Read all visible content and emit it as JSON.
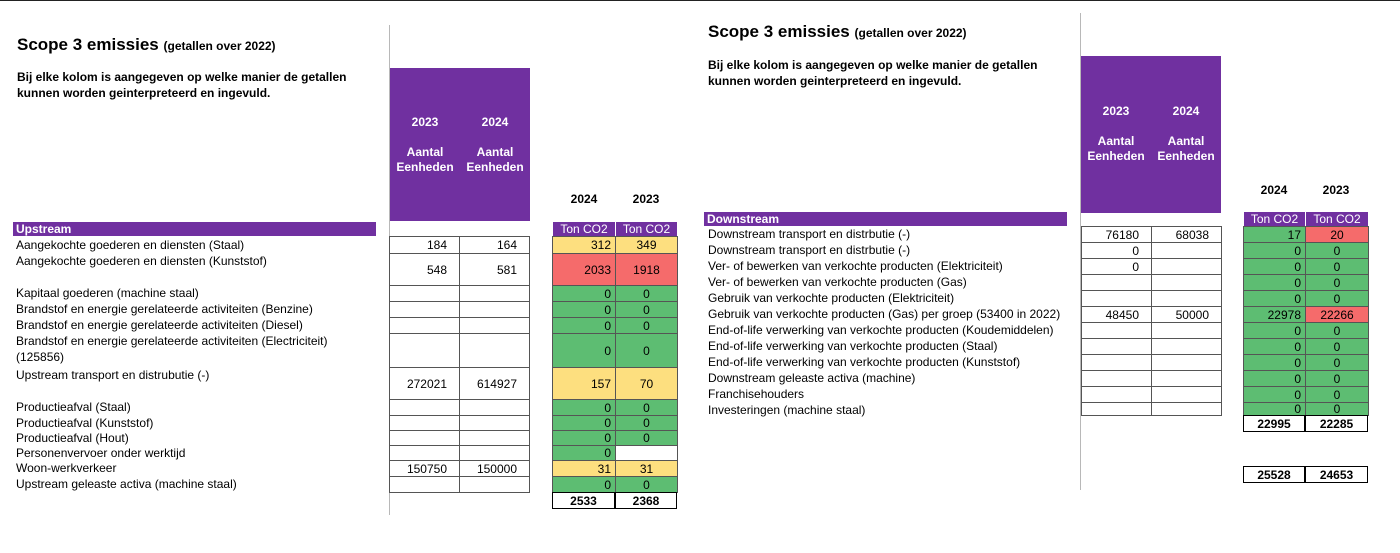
{
  "left": {
    "title": "Scope 3 emissies",
    "subtitle": "(getallen over 2022)",
    "description_line1": "Bij elke kolom is aangegeven op welke manier de getallen",
    "description_line2": "kunnen worden geinterpreteerd en ingevuld.",
    "units_col1": "2023\n\nAantal\nEenheden",
    "units_col2": "2024\n\nAantal\nEenheden",
    "year_col1": "2024",
    "year_col2": "2023",
    "section": "Upstream",
    "ton_label": "Ton CO2",
    "rows": [
      {
        "label": "Aangekochte goederen en diensten (Staal)",
        "u1": "184",
        "u2": "164",
        "v1": "312",
        "v2": "349"
      },
      {
        "label": "Aangekochte goederen en diensten (Kunststof)",
        "u1": "548",
        "u2": "581",
        "v1": "2033",
        "v2": "1918"
      },
      {
        "label": "Kapitaal goederen (machine staal)",
        "u1": "",
        "u2": "",
        "v1": "0",
        "v2": "0"
      },
      {
        "label": "Brandstof en energie gerelateerde activiteiten (Benzine)",
        "u1": "",
        "u2": "",
        "v1": "0",
        "v2": "0"
      },
      {
        "label": "Brandstof en energie gerelateerde activiteiten (Diesel)",
        "u1": "",
        "u2": "",
        "v1": "0",
        "v2": "0"
      },
      {
        "label": "Brandstof en energie gerelateerde activiteiten (Electriciteit)",
        "label2": "(125856)",
        "u1": "",
        "u2": "",
        "v1": "0",
        "v2": "0"
      },
      {
        "label": "Upstream transport en distrubutie (-)",
        "u1": "272021",
        "u2": "614927",
        "v1": "157",
        "v2": "70"
      },
      {
        "label": "Productieafval (Staal)",
        "u1": "",
        "u2": "",
        "v1": "0",
        "v2": "0"
      },
      {
        "label": "Productieafval (Kunststof)",
        "u1": "",
        "u2": "",
        "v1": "0",
        "v2": "0"
      },
      {
        "label": "Productieafval (Hout)",
        "u1": "",
        "u2": "",
        "v1": "0",
        "v2": "0"
      },
      {
        "label": "Personenvervoer onder werktijd",
        "u1": "",
        "u2": "",
        "v1": "0",
        "v2": ""
      },
      {
        "label": "Woon-werkverkeer",
        "u1": "150750",
        "u2": "150000",
        "v1": "31",
        "v2": "31"
      },
      {
        "label": "Upstream geleaste activa (machine staal)",
        "u1": "",
        "u2": "",
        "v1": "0",
        "v2": "0"
      }
    ],
    "total1": "2533",
    "total2": "2368"
  },
  "right": {
    "title": "Scope 3 emissies",
    "subtitle": "(getallen over 2022)",
    "description_line1": "Bij elke kolom is aangegeven op welke manier de getallen",
    "description_line2": "kunnen worden geinterpreteerd en ingevuld.",
    "units_col1": "2023\n\nAantal\nEenheden",
    "units_col2": "2024\n\nAantal\nEenheden",
    "year_col1": "2024",
    "year_col2": "2023",
    "section": "Downstream",
    "ton_label": "Ton CO2",
    "rows": [
      {
        "label": "Downstream transport en distrbutie (-)",
        "u1": "76180",
        "u2": "68038",
        "v1": "17",
        "v2": "20"
      },
      {
        "label": "Downstream transport en distrbutie (-)",
        "u1": "0",
        "u2": "",
        "v1": "0",
        "v2": "0"
      },
      {
        "label": "Ver- of bewerken van verkochte producten (Elektriciteit)",
        "u1": "0",
        "u2": "",
        "v1": "0",
        "v2": "0"
      },
      {
        "label": "Ver- of bewerken van verkochte producten (Gas)",
        "u1": "",
        "u2": "",
        "v1": "0",
        "v2": "0"
      },
      {
        "label": "Gebruik van verkochte producten (Elektriciteit)",
        "u1": "",
        "u2": "",
        "v1": "0",
        "v2": "0"
      },
      {
        "label": "Gebruik van verkochte producten (Gas) per groep (53400 in 2022)",
        "u1": "48450",
        "u2": "50000",
        "v1": "22978",
        "v2": "22266"
      },
      {
        "label": "End-of-life verwerking van verkochte producten (Koudemiddelen)",
        "u1": "",
        "u2": "",
        "v1": "0",
        "v2": "0"
      },
      {
        "label": "End-of-life verwerking van verkochte producten (Staal)",
        "u1": "",
        "u2": "",
        "v1": "0",
        "v2": "0"
      },
      {
        "label": "End-of-life verwerking van verkochte producten (Kunststof)",
        "u1": "",
        "u2": "",
        "v1": "0",
        "v2": "0"
      },
      {
        "label": "Downstream geleaste activa (machine)",
        "u1": "",
        "u2": "",
        "v1": "0",
        "v2": "0"
      },
      {
        "label": "Franchisehouders",
        "u1": "",
        "u2": "",
        "v1": "0",
        "v2": "0"
      },
      {
        "label": "Investeringen (machine staal)",
        "u1": "",
        "u2": "",
        "v1": "0",
        "v2": "0"
      }
    ],
    "total1": "22995",
    "total2": "22285",
    "grand_total1": "25528",
    "grand_total2": "24653"
  }
}
